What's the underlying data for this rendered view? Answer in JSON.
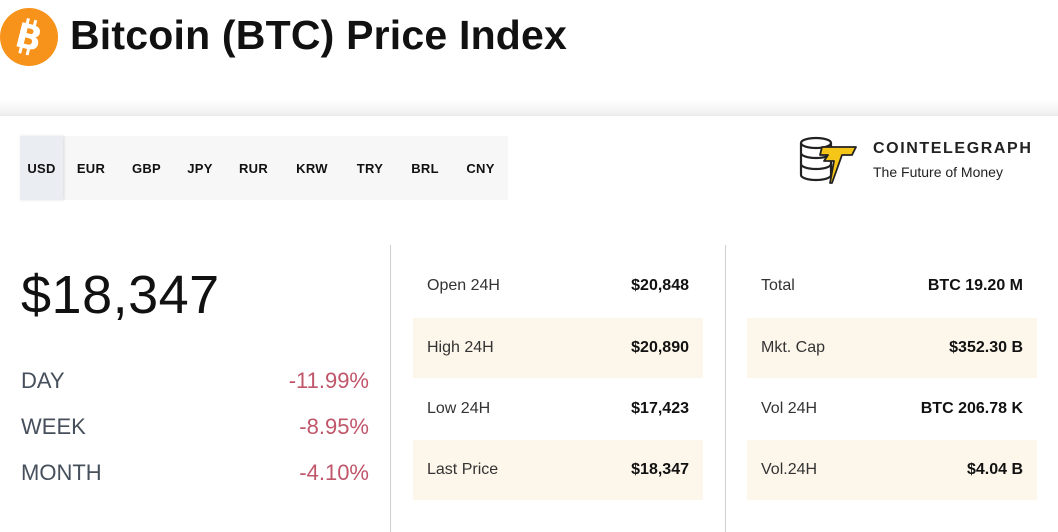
{
  "header": {
    "title": "Bitcoin (BTC) Price Index",
    "logo_icon": "bitcoin-icon",
    "logo_color": "#f7931a"
  },
  "currency_tabs": {
    "selected": "USD",
    "items": [
      "USD",
      "EUR",
      "GBP",
      "JPY",
      "RUR",
      "KRW",
      "TRY",
      "BRL",
      "CNY"
    ]
  },
  "brand": {
    "name": "COINTELEGRAPH",
    "tagline": "The Future of Money",
    "icon": "cointelegraph-coins-icon",
    "accent_color": "#f5c518"
  },
  "price": {
    "current": "$18,347",
    "changes": [
      {
        "label": "DAY",
        "value": "-11.99%"
      },
      {
        "label": "WEEK",
        "value": "-8.95%"
      },
      {
        "label": "MONTH",
        "value": "-4.10%"
      }
    ],
    "negative_color": "#c0566a"
  },
  "price_stats": [
    {
      "label": "Open 24H",
      "value": "$20,848"
    },
    {
      "label": "High 24H",
      "value": "$20,890"
    },
    {
      "label": "Low 24H",
      "value": "$17,423"
    },
    {
      "label": "Last Price",
      "value": "$18,347"
    }
  ],
  "market_stats": [
    {
      "label": "Total",
      "value": "BTC 19.20 M"
    },
    {
      "label": "Mkt. Cap",
      "value": "$352.30 B"
    },
    {
      "label": "Vol 24H",
      "value": "BTC 206.78 K"
    },
    {
      "label": "Vol.24H",
      "value": "$4.04 B"
    }
  ]
}
